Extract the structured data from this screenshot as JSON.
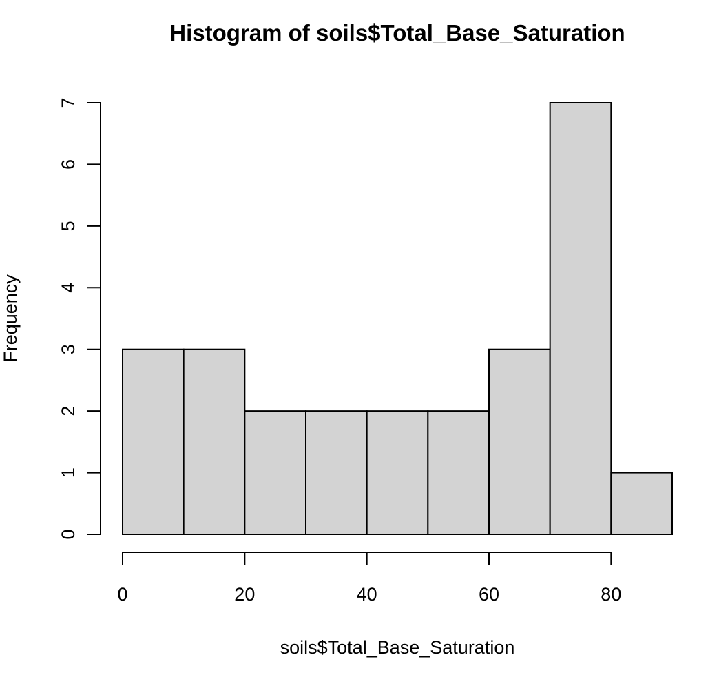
{
  "chart_data": {
    "type": "bar",
    "title": "Histogram of soils$Total_Base_Saturation",
    "xlabel": "soils$Total_Base_Saturation",
    "ylabel": "Frequency",
    "bins": [
      {
        "start": 0,
        "end": 10,
        "count": 3
      },
      {
        "start": 10,
        "end": 20,
        "count": 3
      },
      {
        "start": 20,
        "end": 30,
        "count": 2
      },
      {
        "start": 30,
        "end": 40,
        "count": 2
      },
      {
        "start": 40,
        "end": 50,
        "count": 2
      },
      {
        "start": 50,
        "end": 60,
        "count": 2
      },
      {
        "start": 60,
        "end": 70,
        "count": 3
      },
      {
        "start": 70,
        "end": 80,
        "count": 7
      },
      {
        "start": 80,
        "end": 90,
        "count": 1
      }
    ],
    "xlim": [
      0,
      90
    ],
    "ylim": [
      0,
      7
    ],
    "x_ticks": [
      0,
      20,
      40,
      60,
      80
    ],
    "y_ticks": [
      0,
      1,
      2,
      3,
      4,
      5,
      6,
      7
    ],
    "bar_fill": "#d3d3d3",
    "bar_stroke": "#000000",
    "grid": false,
    "legend": "none"
  }
}
